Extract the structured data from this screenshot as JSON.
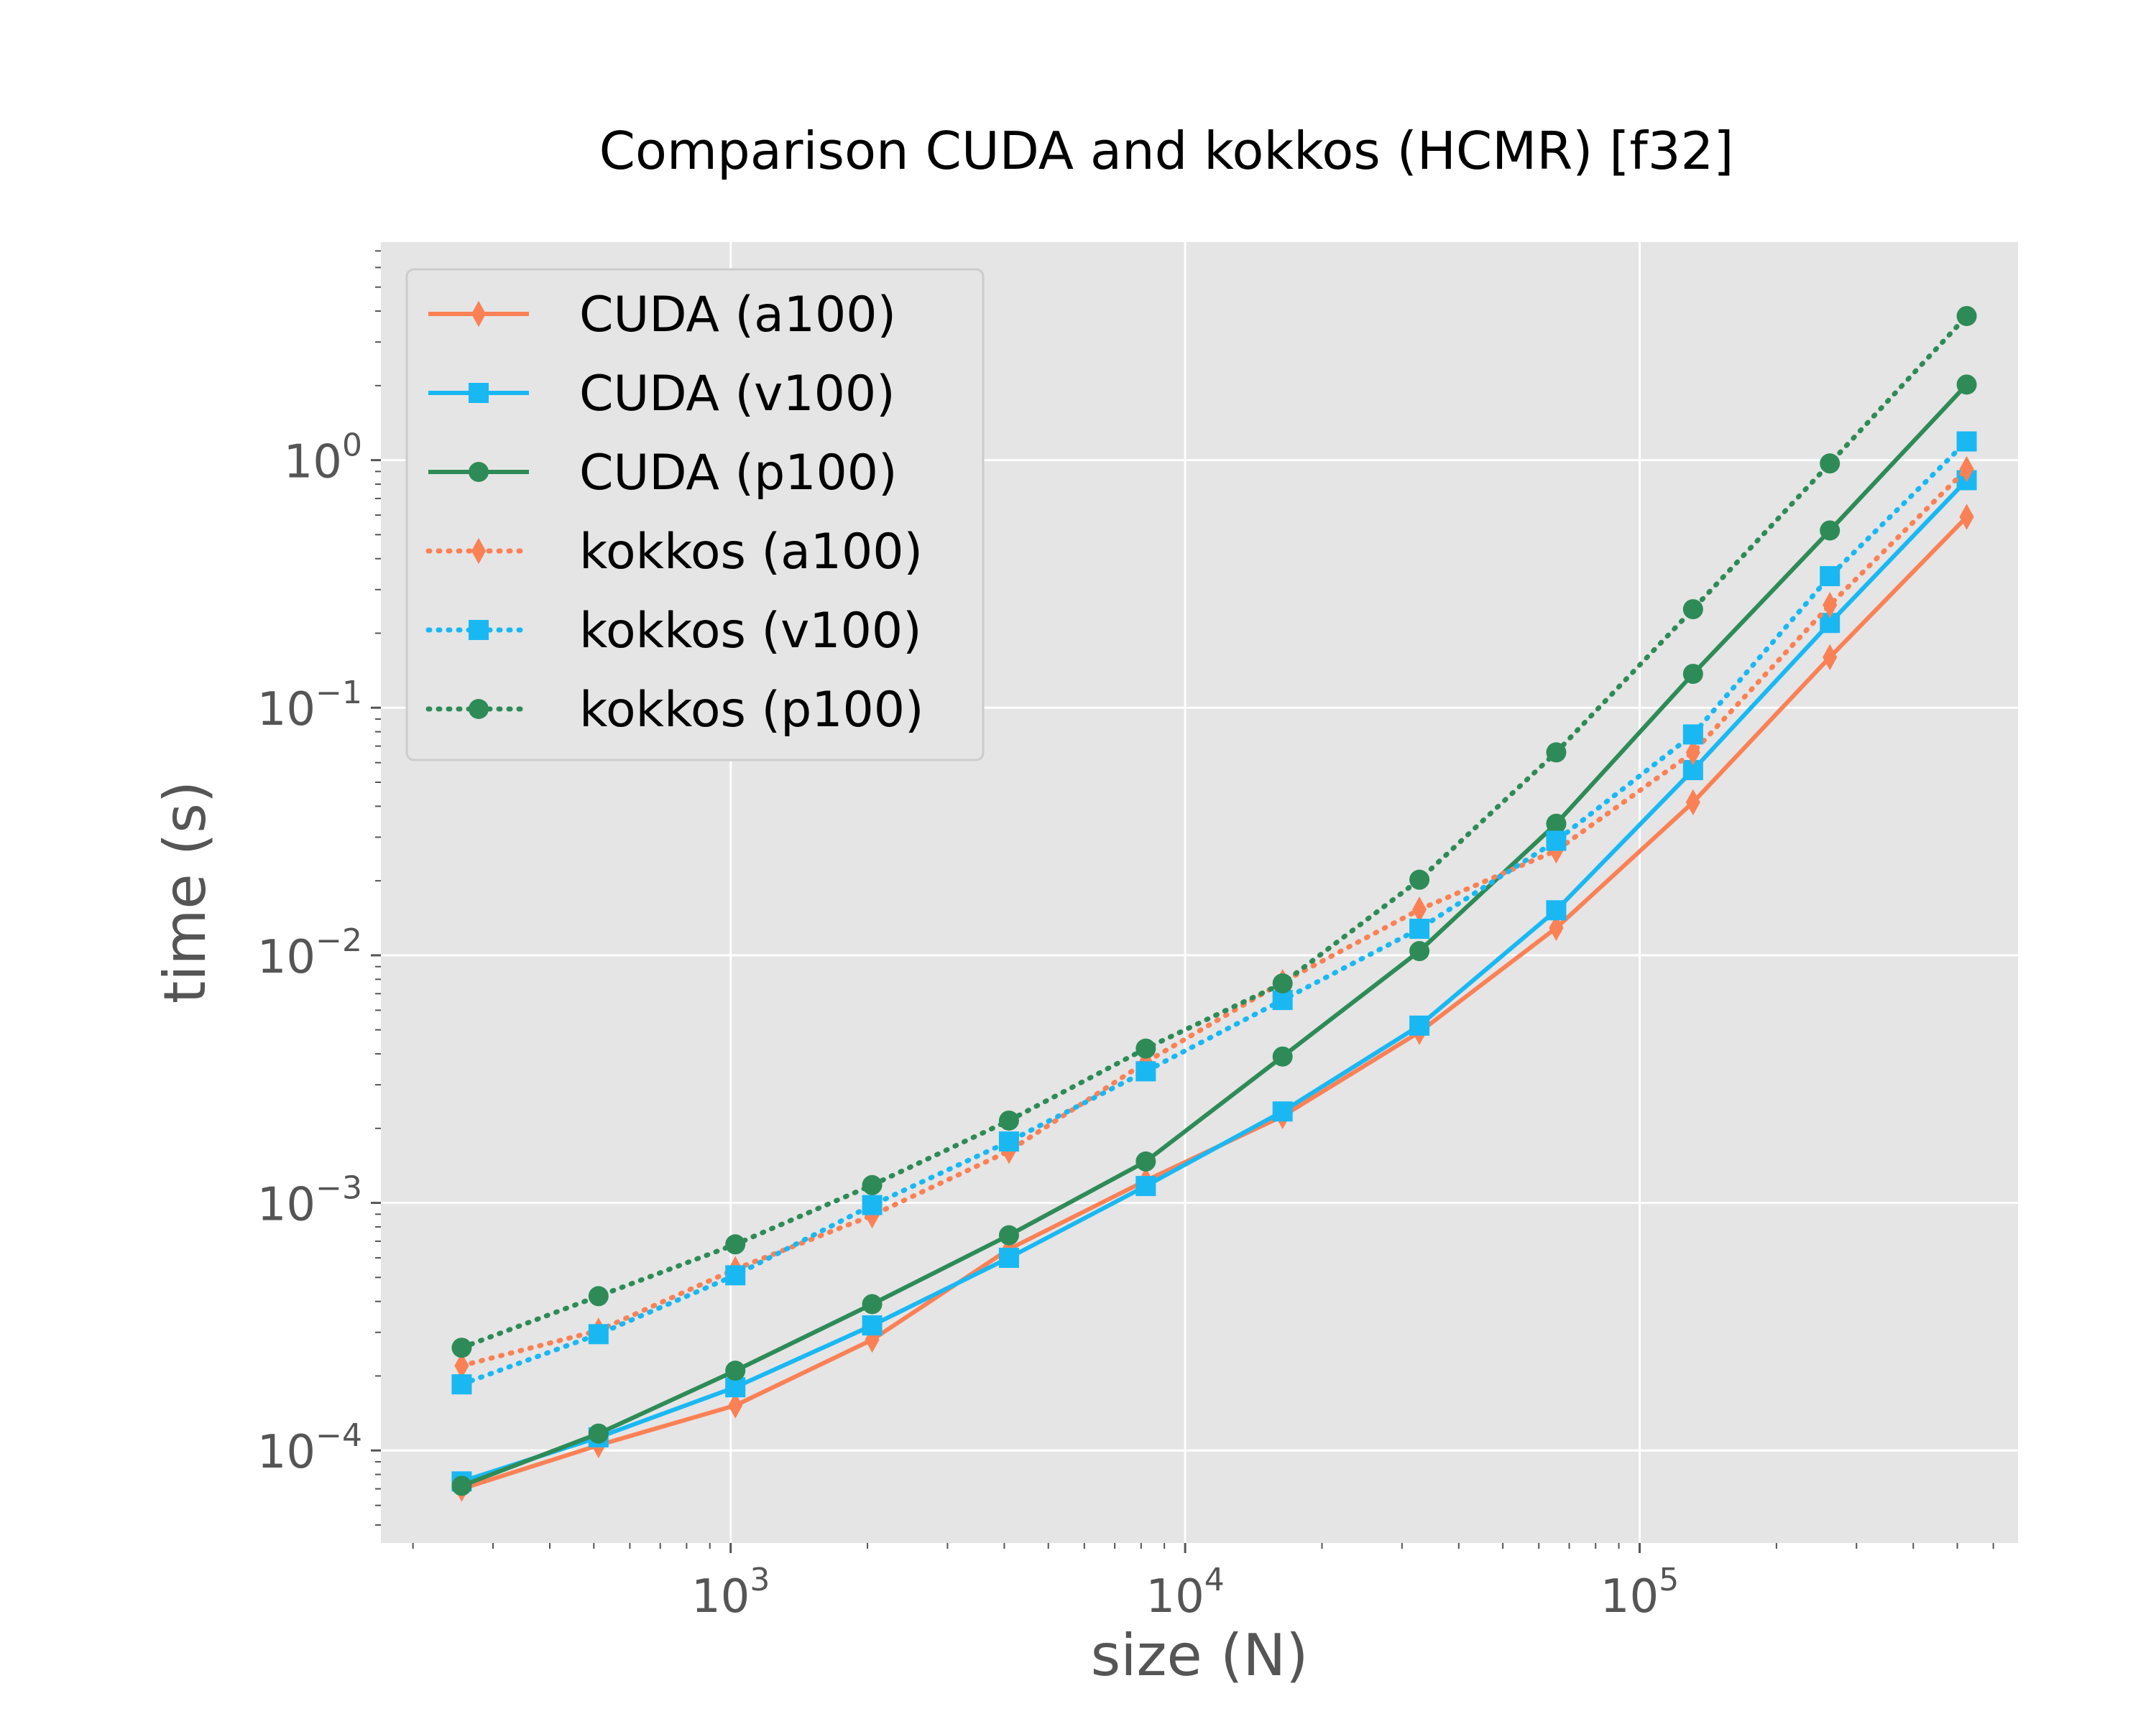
{
  "chart_data": {
    "type": "line",
    "title": "Comparison CUDA and kokkos (HCMR) [f32]",
    "xlabel": "size (N)",
    "ylabel": "time (s)",
    "xscale": "log",
    "yscale": "log",
    "xlim": [
      170,
      680000
    ],
    "ylim": [
      4.23e-05,
      7.6
    ],
    "x_ticks": [
      {
        "value": 1000,
        "label": "10",
        "exp": "3"
      },
      {
        "value": 10000,
        "label": "10",
        "exp": "4"
      },
      {
        "value": 100000,
        "label": "10",
        "exp": "5"
      }
    ],
    "y_ticks": [
      {
        "value": 0.0001,
        "label": "10",
        "exp": "−4"
      },
      {
        "value": 0.001,
        "label": "10",
        "exp": "−3"
      },
      {
        "value": 0.01,
        "label": "10",
        "exp": "−2"
      },
      {
        "value": 0.1,
        "label": "10",
        "exp": "−1"
      },
      {
        "value": 1,
        "label": "10",
        "exp": "0"
      }
    ],
    "grid": true,
    "background": "#e5e5e5",
    "legend_position": "top-left",
    "x": [
      256,
      512,
      1024,
      2048,
      4096,
      8192,
      16384,
      32768,
      65536,
      131072,
      262144,
      524288
    ],
    "series": [
      {
        "name": "CUDA (a100)",
        "color": "#fa8155",
        "style": "solid",
        "marker": "diamond",
        "values": [
          7e-05,
          0.000105,
          0.000152,
          0.00028,
          0.00065,
          0.00123,
          0.00224,
          0.0049,
          0.0129,
          0.0415,
          0.16,
          0.59
        ]
      },
      {
        "name": "CUDA (v100)",
        "color": "#1ab8f2",
        "style": "solid",
        "marker": "square",
        "values": [
          7.5e-05,
          0.000113,
          0.00018,
          0.00032,
          0.0006,
          0.00117,
          0.00234,
          0.0052,
          0.0152,
          0.056,
          0.22,
          0.83
        ]
      },
      {
        "name": "CUDA (p100)",
        "color": "#2e8b57",
        "style": "solid",
        "marker": "circle",
        "values": [
          7.2e-05,
          0.000117,
          0.00021,
          0.00039,
          0.00074,
          0.00147,
          0.0039,
          0.0104,
          0.034,
          0.137,
          0.52,
          2.02
        ]
      },
      {
        "name": "kokkos (a100)",
        "color": "#fa8155",
        "style": "dotted",
        "marker": "diamond",
        "values": [
          0.00022,
          0.000305,
          0.00054,
          0.00089,
          0.00162,
          0.0037,
          0.0078,
          0.0153,
          0.0265,
          0.066,
          0.26,
          0.92
        ]
      },
      {
        "name": "kokkos (v100)",
        "color": "#1ab8f2",
        "style": "dotted",
        "marker": "square",
        "values": [
          0.000185,
          0.000295,
          0.00051,
          0.00098,
          0.00177,
          0.0034,
          0.0066,
          0.0128,
          0.029,
          0.078,
          0.34,
          1.19
        ]
      },
      {
        "name": "kokkos (p100)",
        "color": "#2e8b57",
        "style": "dotted",
        "marker": "circle",
        "values": [
          0.00026,
          0.00042,
          0.00068,
          0.00118,
          0.00215,
          0.0042,
          0.0077,
          0.0202,
          0.066,
          0.25,
          0.97,
          3.82
        ]
      }
    ]
  }
}
